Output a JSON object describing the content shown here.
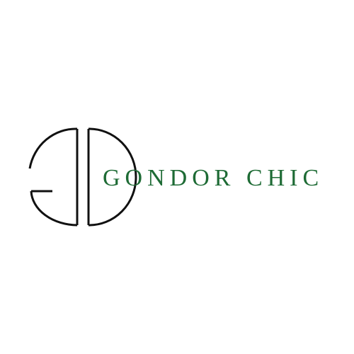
{
  "logo": {
    "mark_icon": "mirrored-g-d-monogram-icon",
    "mark_color": "#111111",
    "brand_name": "GONDOR CHIC",
    "brand_color": "#1e6b35"
  },
  "background_color": "#ffffff"
}
